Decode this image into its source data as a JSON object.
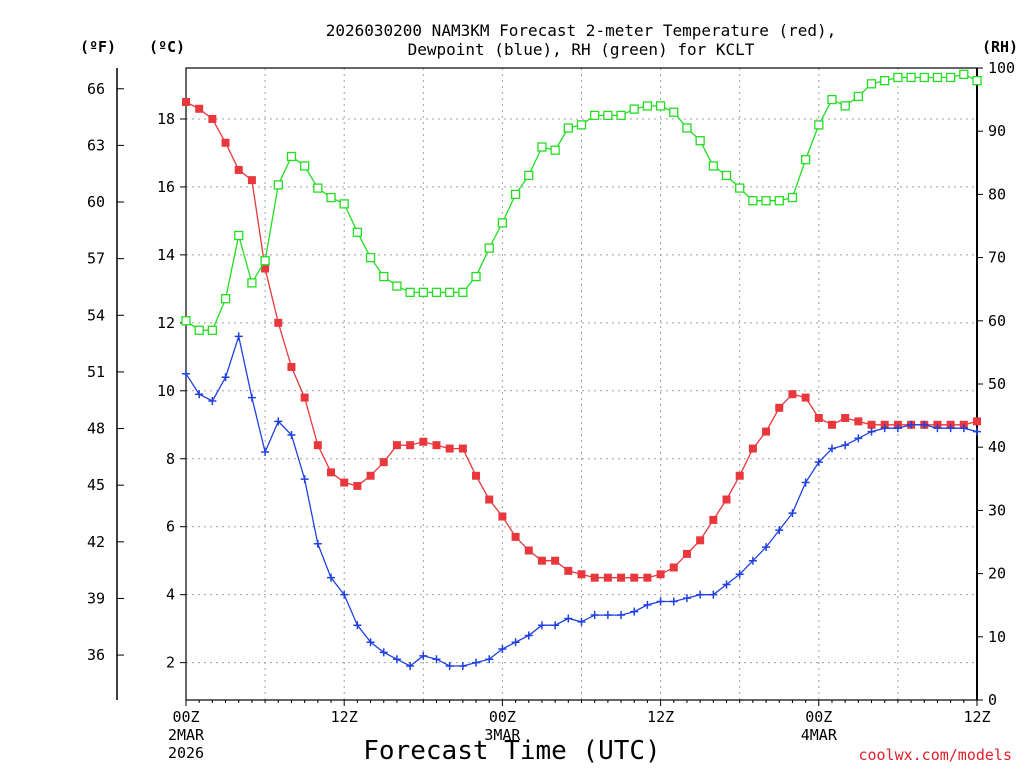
{
  "chart_data": {
    "type": "line",
    "title_line1": "2026030200 NAM3KM Forecast 2-meter Temperature (red),",
    "title_line2": "Dewpoint (blue), RH (green) for KCLT",
    "unit_f": "(ºF)",
    "unit_c": "(ºC)",
    "unit_rh": "(RH)",
    "xlabel": "Forecast Time (UTC)",
    "credit": "coolwx.com/models",
    "x_range_hours": [
      0,
      60
    ],
    "c_range": [
      0.9,
      19.5
    ],
    "rh_range": [
      0,
      100
    ],
    "c_ticks": [
      "2",
      "4",
      "6",
      "8",
      "10",
      "12",
      "14",
      "16",
      "18"
    ],
    "f_ticks": [
      "36",
      "39",
      "42",
      "45",
      "48",
      "51",
      "54",
      "57",
      "60",
      "63",
      "66"
    ],
    "rh_ticks": [
      "0",
      "10",
      "20",
      "30",
      "40",
      "50",
      "60",
      "70",
      "80",
      "90",
      "100"
    ],
    "x_ticks": [
      {
        "hour": 0,
        "label": "00Z",
        "sub1": "2MAR",
        "sub2": "2026"
      },
      {
        "hour": 12,
        "label": "12Z",
        "sub1": "",
        "sub2": ""
      },
      {
        "hour": 24,
        "label": "00Z",
        "sub1": "3MAR",
        "sub2": ""
      },
      {
        "hour": 36,
        "label": "12Z",
        "sub1": "",
        "sub2": ""
      },
      {
        "hour": 48,
        "label": "00Z",
        "sub1": "4MAR",
        "sub2": ""
      },
      {
        "hour": 60,
        "label": "12Z",
        "sub1": "",
        "sub2": ""
      }
    ],
    "hours": [
      0,
      1,
      2,
      3,
      4,
      5,
      6,
      7,
      8,
      9,
      10,
      11,
      12,
      13,
      14,
      15,
      16,
      17,
      18,
      19,
      20,
      21,
      22,
      23,
      24,
      25,
      26,
      27,
      28,
      29,
      30,
      31,
      32,
      33,
      34,
      35,
      36,
      37,
      38,
      39,
      40,
      41,
      42,
      43,
      44,
      45,
      46,
      47,
      48,
      49,
      50,
      51,
      52,
      53,
      54,
      55,
      56,
      57,
      58,
      59,
      60
    ],
    "series": [
      {
        "name": "2-meter Temperature",
        "unit": "C",
        "color": "#e8383d",
        "marker": "square-filled",
        "values": [
          18.5,
          18.3,
          18.0,
          17.3,
          16.5,
          16.2,
          13.6,
          12.0,
          10.7,
          9.8,
          8.4,
          7.6,
          7.3,
          7.2,
          7.5,
          7.9,
          8.4,
          8.4,
          8.5,
          8.4,
          8.3,
          8.3,
          7.5,
          6.8,
          6.3,
          5.7,
          5.3,
          5.0,
          5.0,
          4.7,
          4.6,
          4.5,
          4.5,
          4.5,
          4.5,
          4.5,
          4.6,
          4.8,
          5.2,
          5.6,
          6.2,
          6.8,
          7.5,
          8.3,
          8.8,
          9.5,
          9.9,
          9.8,
          9.2,
          9.0,
          9.2,
          9.1,
          9.0,
          9.0,
          9.0,
          9.0,
          9.0,
          9.0,
          9.0,
          9.0,
          9.1
        ]
      },
      {
        "name": "Dewpoint",
        "unit": "C",
        "color": "#2040e0",
        "marker": "plus",
        "values": [
          10.5,
          9.9,
          9.7,
          10.4,
          11.6,
          9.8,
          8.2,
          9.1,
          8.7,
          7.4,
          5.5,
          4.5,
          4.0,
          3.1,
          2.6,
          2.3,
          2.1,
          1.9,
          2.2,
          2.1,
          1.9,
          1.9,
          2.0,
          2.1,
          2.4,
          2.6,
          2.8,
          3.1,
          3.1,
          3.3,
          3.2,
          3.4,
          3.4,
          3.4,
          3.5,
          3.7,
          3.8,
          3.8,
          3.9,
          4.0,
          4.0,
          4.3,
          4.6,
          5.0,
          5.4,
          5.9,
          6.4,
          7.3,
          7.9,
          8.3,
          8.4,
          8.6,
          8.8,
          8.9,
          8.9,
          9.0,
          9.0,
          8.9,
          8.9,
          8.9,
          8.8
        ]
      },
      {
        "name": "RH",
        "unit": "%",
        "color": "#22dd22",
        "marker": "square-open",
        "values": [
          60,
          58.5,
          58.5,
          63.5,
          73.5,
          66,
          69.5,
          81.5,
          86,
          84.5,
          81,
          79.5,
          78.5,
          74,
          70,
          67,
          65.5,
          64.5,
          64.5,
          64.5,
          64.5,
          64.5,
          67,
          71.5,
          75.5,
          80,
          83,
          87.5,
          87,
          90.5,
          91,
          92.5,
          92.5,
          92.5,
          93.5,
          94,
          94,
          93,
          90.5,
          88.5,
          84.5,
          83,
          81,
          79,
          79,
          79,
          79.5,
          85.5,
          91,
          95,
          94,
          95.5,
          97.5,
          98,
          98.5,
          98.5,
          98.5,
          98.5,
          98.5,
          99,
          98
        ]
      }
    ]
  }
}
